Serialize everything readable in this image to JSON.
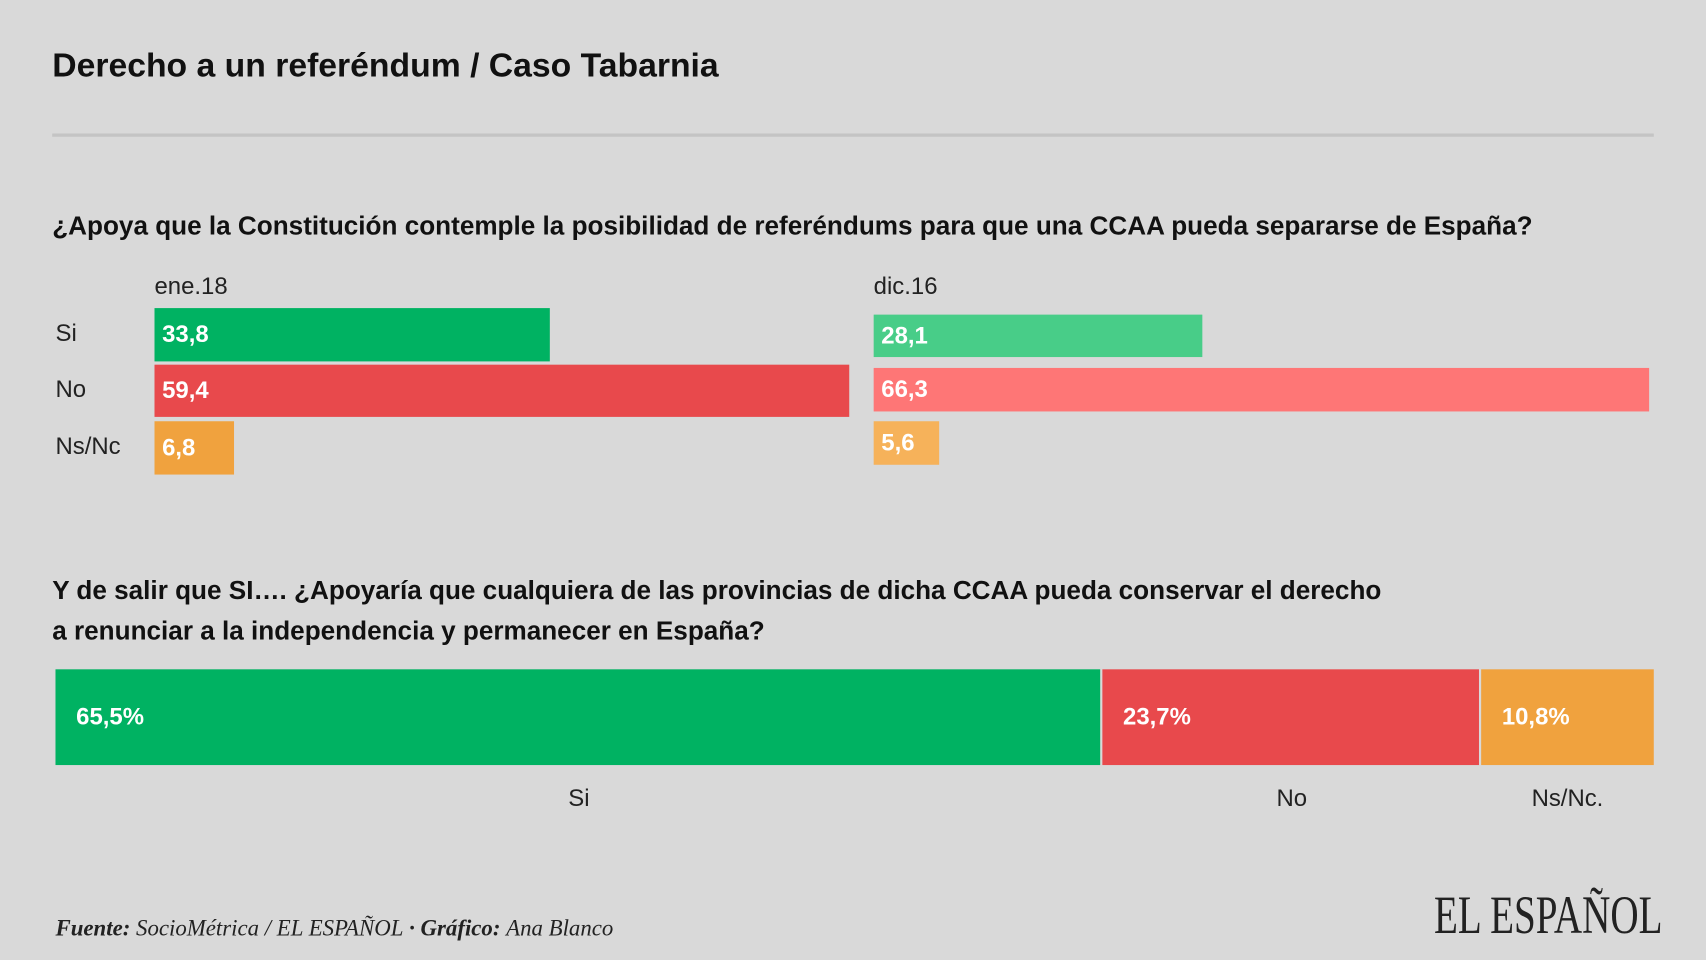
{
  "title": "Derecho a un referéndum / Caso Tabarnia",
  "chart_data": [
    {
      "type": "paired-bar",
      "title": "¿Apoya que la Constitución contemple la posibilidad de referéndums para que una CCAA pueda separarse de España?",
      "categories": [
        "Si",
        "No",
        "Ns/Nc"
      ],
      "series": [
        {
          "name": "ene.18",
          "colors": [
            "#00b262",
            "#e8494c",
            "#f0a23e"
          ],
          "values": [
            33.8,
            59.4,
            6.8
          ],
          "value_labels": [
            "33,8",
            "59,4",
            "6,8"
          ]
        },
        {
          "name": "dic.16",
          "colors": [
            "#48cd88",
            "#fe7676",
            "#f6b25a"
          ],
          "values": [
            28.1,
            66.3,
            5.6
          ],
          "value_labels": [
            "28,1",
            "66,3",
            "5,6"
          ]
        }
      ]
    },
    {
      "type": "stacked-bar",
      "title": "Y de salir que SI…. ¿Apoyaría que cualquiera de las provincias de dicha CCAA pueda conservar el derecho a renunciar a la independencia y permanecer en España?",
      "categories": [
        "Si",
        "No",
        "Ns/Nc."
      ],
      "colors": [
        "#00b262",
        "#e8494c",
        "#f0a23e"
      ],
      "values": [
        65.5,
        23.7,
        10.8
      ],
      "value_labels": [
        "65,5%",
        "23,7%",
        "10,8%"
      ]
    }
  ],
  "source": {
    "label": "Fuente:",
    "text": "SocioMétrica / EL ESPAÑOL",
    "credit_label": "· Gráfico:",
    "credit": "Ana Blanco"
  },
  "logo": "EL ESPAÑOL"
}
